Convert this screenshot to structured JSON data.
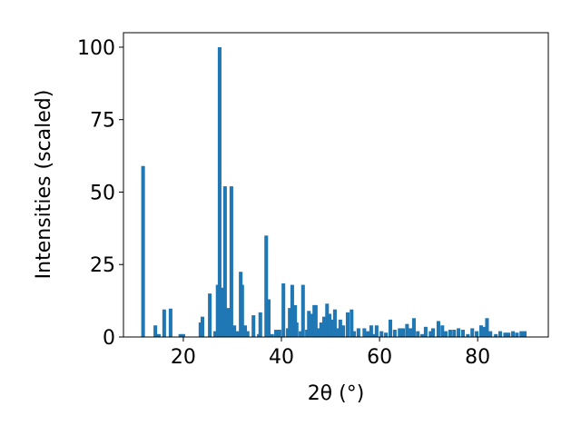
{
  "chart_data": {
    "type": "bar",
    "x_label": "2θ (°)",
    "y_label": "Intensities (scaled)",
    "color": "#1f77b4",
    "x": [
      11.8,
      14.3,
      15.0,
      16.1,
      17.4,
      19.4,
      20.0,
      23.5,
      23.9,
      25.4,
      26.5,
      27.0,
      27.4,
      28.0,
      28.5,
      29.1,
      29.8,
      30.4,
      31.1,
      31.7,
      32.0,
      32.6,
      33.1,
      34.3,
      35.4,
      35.7,
      36.9,
      37.4,
      38.1,
      38.9,
      39.6,
      40.4,
      41.3,
      41.7,
      42.2,
      42.8,
      43.1,
      43.9,
      44.4,
      45.2,
      45.6,
      46.1,
      46.7,
      47.0,
      47.6,
      48.1,
      48.7,
      49.3,
      49.8,
      50.4,
      50.9,
      51.5,
      52.0,
      52.6,
      53.5,
      54.3,
      54.8,
      55.7,
      56.9,
      57.6,
      58.3,
      58.9,
      59.4,
      60.4,
      61.3,
      62.2,
      63.1,
      64.1,
      64.8,
      65.6,
      66.3,
      67.0,
      67.8,
      68.7,
      69.4,
      70.4,
      70.9,
      72.0,
      72.8,
      73.5,
      74.4,
      75.2,
      76.1,
      77.0,
      78.0,
      78.9,
      79.8,
      80.7,
      81.3,
      81.9,
      82.6,
      83.7,
      84.6,
      85.6,
      86.3,
      87.2,
      88.0,
      88.9,
      89.6
    ],
    "values": [
      59,
      4,
      1,
      9.5,
      9.8,
      1,
      1,
      5,
      7,
      15,
      2,
      18,
      100,
      17,
      52,
      10,
      52,
      4,
      2,
      22.5,
      18,
      4,
      2,
      7.5,
      1,
      8.5,
      35,
      13,
      1,
      2.5,
      2.5,
      18.5,
      3,
      10,
      18,
      11,
      5,
      2,
      18,
      2.5,
      9,
      8,
      11,
      11,
      3,
      5,
      7,
      11.5,
      8,
      6,
      9.5,
      3,
      6,
      4,
      8.5,
      9.5,
      2,
      3,
      3,
      2,
      4,
      1,
      4,
      2,
      1.5,
      6,
      2.5,
      3,
      3,
      4.5,
      3,
      6.5,
      2,
      1,
      3.5,
      2,
      3,
      5.5,
      4,
      2,
      2.5,
      2.5,
      3,
      2.5,
      1,
      3,
      2,
      4,
      3.5,
      6.5,
      2,
      1,
      2,
      1.5,
      1.5,
      2,
      1.5,
      2,
      2
    ],
    "xlim": [
      7.8,
      94.4
    ],
    "xticks": [
      20,
      40,
      60,
      80
    ],
    "ylim": [
      0,
      105
    ],
    "yticks": [
      0,
      25,
      50,
      75,
      100
    ]
  }
}
